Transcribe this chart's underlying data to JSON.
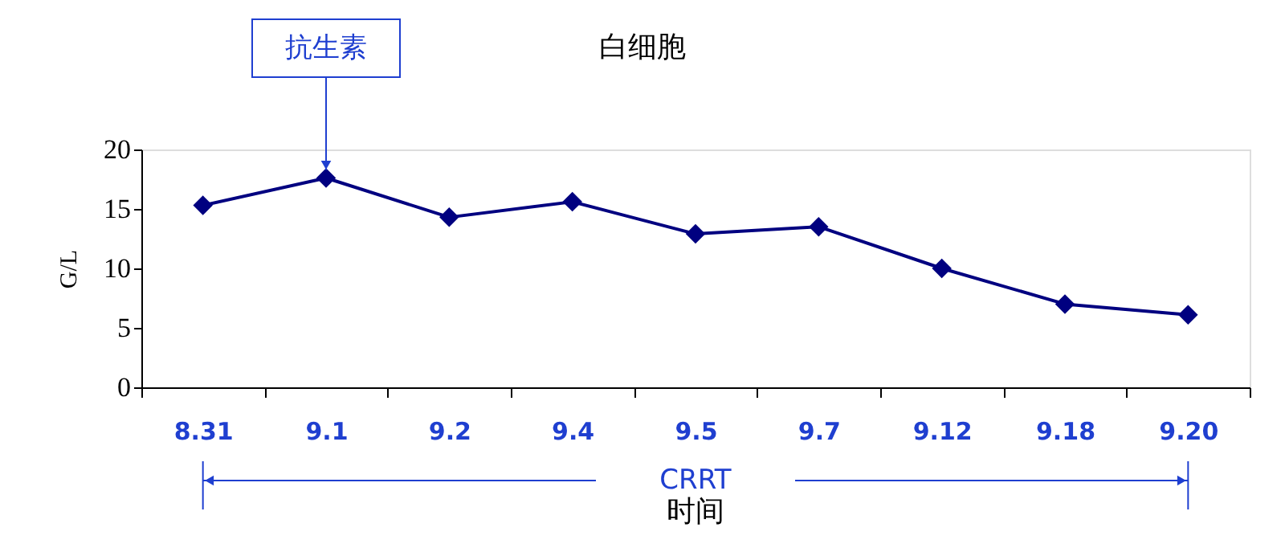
{
  "chart_data": {
    "type": "line",
    "title": "白细胞",
    "xlabel": "时间",
    "ylabel": "G/L",
    "categories": [
      "8.31",
      "9.1",
      "9.2",
      "9.4",
      "9.5",
      "9.7",
      "9.12",
      "9.18",
      "9.20"
    ],
    "series": [
      {
        "color": "#000080",
        "values": [
          15.3,
          17.6,
          14.3,
          15.6,
          12.9,
          13.5,
          10.0,
          7.0,
          6.1
        ]
      }
    ],
    "ylim": [
      0,
      20
    ],
    "yticks": [
      0,
      5,
      10,
      15,
      20
    ],
    "grid": false,
    "legend": false,
    "marker": "diamond",
    "line_style": "solid",
    "annotations": [
      {
        "text": "抗生素",
        "x": "9.1",
        "y": 17.6
      },
      "CRRT"
    ]
  }
}
